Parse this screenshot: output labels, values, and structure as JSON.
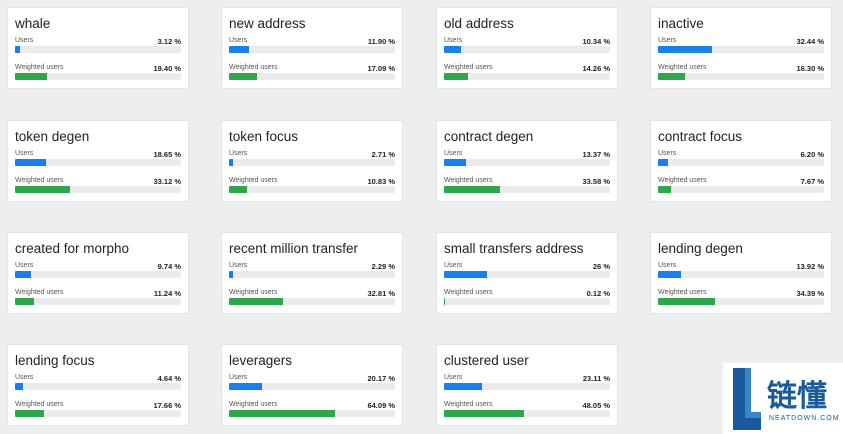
{
  "colors": {
    "users_bar": "#1a7fe8",
    "weighted_bar": "#2aa84a",
    "track": "#e9ebed",
    "logo": "#1a5a9a"
  },
  "cards": [
    {
      "title": "whale",
      "users_label": "Users",
      "users_value": "3.12 %",
      "users_pct": 3.12,
      "weighted_label": "Weighted users",
      "weighted_value": "19.40 %",
      "weighted_pct": 19.4
    },
    {
      "title": "new address",
      "users_label": "Users",
      "users_value": "11.90 %",
      "users_pct": 11.9,
      "weighted_label": "Weighted users",
      "weighted_value": "17.09 %",
      "weighted_pct": 17.09
    },
    {
      "title": "old address",
      "users_label": "Users",
      "users_value": "10.34 %",
      "users_pct": 10.34,
      "weighted_label": "Weighted users",
      "weighted_value": "14.26 %",
      "weighted_pct": 14.26
    },
    {
      "title": "inactive",
      "users_label": "Users",
      "users_value": "32.44 %",
      "users_pct": 32.44,
      "weighted_label": "Weighted users",
      "weighted_value": "16.30 %",
      "weighted_pct": 16.3
    },
    {
      "title": "token degen",
      "users_label": "Users",
      "users_value": "18.65 %",
      "users_pct": 18.65,
      "weighted_label": "Weighted users",
      "weighted_value": "33.12 %",
      "weighted_pct": 33.12
    },
    {
      "title": "token focus",
      "users_label": "Users",
      "users_value": "2.71 %",
      "users_pct": 2.71,
      "weighted_label": "Weighted users",
      "weighted_value": "10.83 %",
      "weighted_pct": 10.83
    },
    {
      "title": "contract degen",
      "users_label": "Users",
      "users_value": "13.37 %",
      "users_pct": 13.37,
      "weighted_label": "Weighted users",
      "weighted_value": "33.58 %",
      "weighted_pct": 33.58
    },
    {
      "title": "contract focus",
      "users_label": "Users",
      "users_value": "6.20 %",
      "users_pct": 6.2,
      "weighted_label": "Weighted users",
      "weighted_value": "7.67 %",
      "weighted_pct": 7.67
    },
    {
      "title": "created for morpho",
      "users_label": "Users",
      "users_value": "9.74 %",
      "users_pct": 9.74,
      "weighted_label": "Weighted users",
      "weighted_value": "11.24 %",
      "weighted_pct": 11.24
    },
    {
      "title": "recent million transfer",
      "users_label": "Users",
      "users_value": "2.29 %",
      "users_pct": 2.29,
      "weighted_label": "Weighted users",
      "weighted_value": "32.81 %",
      "weighted_pct": 32.81
    },
    {
      "title": "small transfers address",
      "users_label": "Users",
      "users_value": "26 %",
      "users_pct": 26,
      "weighted_label": "Weighted users",
      "weighted_value": "0.12 %",
      "weighted_pct": 0.12
    },
    {
      "title": "lending degen",
      "users_label": "Users",
      "users_value": "13.92 %",
      "users_pct": 13.92,
      "weighted_label": "Weighted users",
      "weighted_value": "34.39 %",
      "weighted_pct": 34.39
    },
    {
      "title": "lending focus",
      "users_label": "Users",
      "users_value": "4.64 %",
      "users_pct": 4.64,
      "weighted_label": "Weighted users",
      "weighted_value": "17.66 %",
      "weighted_pct": 17.66
    },
    {
      "title": "leveragers",
      "users_label": "Users",
      "users_value": "20.17 %",
      "users_pct": 20.17,
      "weighted_label": "Weighted users",
      "weighted_value": "64.09 %",
      "weighted_pct": 64.09
    },
    {
      "title": "clustered user",
      "users_label": "Users",
      "users_value": "23.11 %",
      "users_pct": 23.11,
      "weighted_label": "Weighted users",
      "weighted_value": "48.05 %",
      "weighted_pct": 48.05
    }
  ],
  "watermark": {
    "chinese": "链懂",
    "english": "NEATDOWN.COM"
  }
}
